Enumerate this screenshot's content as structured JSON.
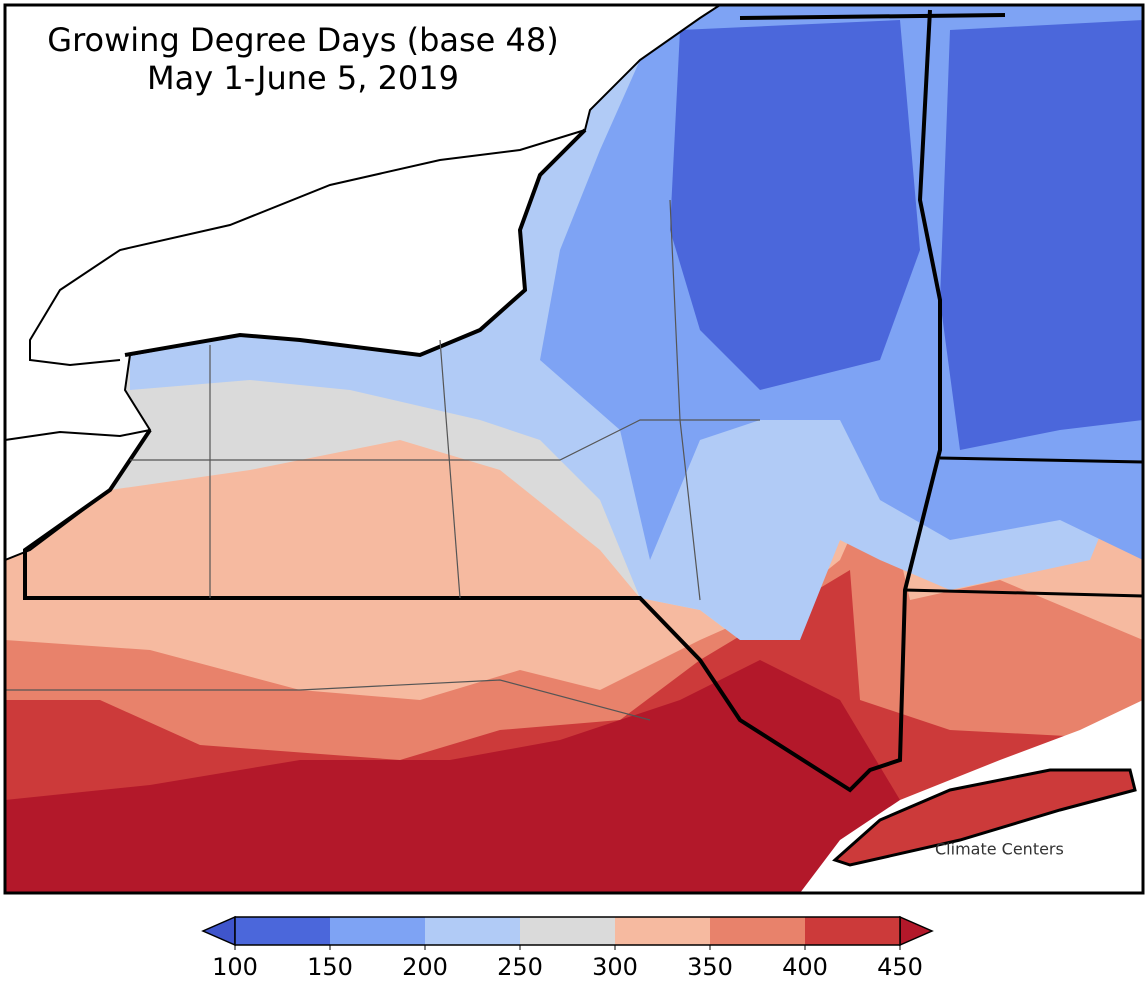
{
  "title": "Growing Degree Days (base 48)",
  "subtitle": "May 1-June 5, 2019",
  "logo_text": "Climate Centers",
  "legend": {
    "ticks": [
      100,
      150,
      200,
      250,
      300,
      350,
      400,
      450
    ],
    "colors": [
      "#4b67db",
      "#7ea3f4",
      "#b1cbf6",
      "#dadada",
      "#f6baa0",
      "#e8826b",
      "#cc3a3a"
    ],
    "under_color": "#3f55cc",
    "over_color": "#b3182a"
  }
}
